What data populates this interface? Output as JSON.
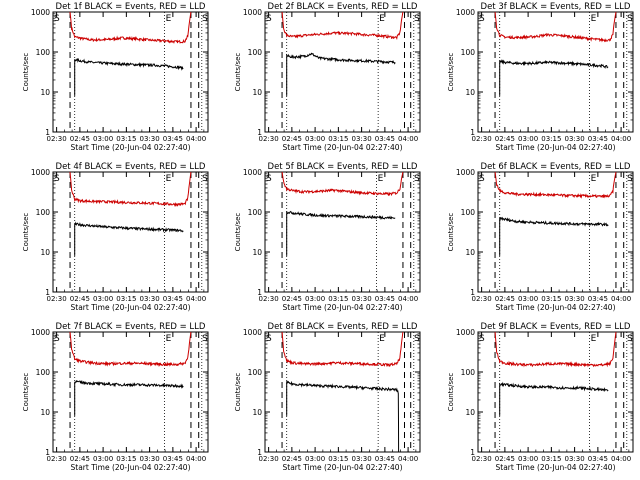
{
  "figure": {
    "start_time_label": "Start Time (20-Jun-04 02:27:40)",
    "ylabel": "Counts/sec",
    "x_ticks": [
      "02:30",
      "02:45",
      "03:00",
      "03:15",
      "03:30",
      "03:45",
      "04:00"
    ],
    "x_tick_minutes": [
      2.33,
      17.33,
      32.33,
      47.33,
      62.33,
      77.33,
      92.33
    ],
    "y_ticks": [
      "1",
      "10",
      "100",
      "1000"
    ],
    "y_tick_values": [
      1,
      10,
      100,
      1000
    ],
    "marker_s": "S",
    "marker_e": "E",
    "colors": {
      "events": "#000000",
      "lld": "#cc0000"
    }
  },
  "chart_data": [
    {
      "type": "line",
      "title": "Det 1f BLACK = Events, RED = LLD",
      "xlabel": "Start Time (20-Jun-04 02:27:40)",
      "ylabel": "Counts/sec",
      "xlim": [
        0,
        100
      ],
      "ylim": [
        1,
        1000
      ],
      "yscale": "log",
      "dashed_lines_min": [
        11,
        89,
        94
      ],
      "dotted_lines_min": [
        14,
        72,
        96
      ],
      "series": [
        {
          "name": "LLD",
          "color": "#cc0000",
          "x": [
            11,
            12,
            14,
            18,
            25,
            35,
            45,
            55,
            65,
            72,
            80,
            85,
            87,
            88,
            89
          ],
          "y": [
            1000,
            400,
            240,
            220,
            200,
            205,
            225,
            210,
            195,
            190,
            180,
            185,
            250,
            550,
            1000
          ]
        },
        {
          "name": "Events",
          "color": "#000000",
          "x": [
            14,
            18,
            25,
            35,
            45,
            55,
            65,
            72,
            80,
            84
          ],
          "y": [
            65,
            60,
            55,
            52,
            50,
            48,
            47,
            45,
            42,
            40
          ]
        }
      ]
    },
    {
      "type": "line",
      "title": "Det 2f BLACK = Events, RED = LLD",
      "xlabel": "Start Time (20-Jun-04 02:27:40)",
      "ylabel": "Counts/sec",
      "xlim": [
        0,
        100
      ],
      "ylim": [
        1,
        1000
      ],
      "yscale": "log",
      "dashed_lines_min": [
        11,
        90,
        94
      ],
      "dotted_lines_min": [
        14,
        73,
        96
      ],
      "series": [
        {
          "name": "LLD",
          "color": "#cc0000",
          "x": [
            11,
            12,
            14,
            18,
            25,
            35,
            45,
            55,
            65,
            73,
            80,
            85,
            87,
            88,
            89
          ],
          "y": [
            1000,
            380,
            260,
            240,
            260,
            280,
            300,
            290,
            270,
            260,
            240,
            230,
            300,
            600,
            1000
          ]
        },
        {
          "name": "Events",
          "color": "#000000",
          "x": [
            14,
            18,
            25,
            30,
            35,
            45,
            55,
            65,
            73,
            80,
            84
          ],
          "y": [
            80,
            75,
            78,
            90,
            70,
            65,
            62,
            60,
            58,
            56,
            55
          ]
        }
      ]
    },
    {
      "type": "line",
      "title": "Det 3f BLACK = Events, RED = LLD",
      "xlabel": "Start Time (20-Jun-04 02:27:40)",
      "ylabel": "Counts/sec",
      "xlim": [
        0,
        100
      ],
      "ylim": [
        1,
        1000
      ],
      "yscale": "log",
      "dashed_lines_min": [
        11,
        89,
        94
      ],
      "dotted_lines_min": [
        14,
        72,
        96
      ],
      "series": [
        {
          "name": "LLD",
          "color": "#cc0000",
          "x": [
            11,
            12,
            14,
            18,
            25,
            35,
            45,
            55,
            65,
            72,
            80,
            85,
            87,
            88,
            89
          ],
          "y": [
            1000,
            420,
            260,
            235,
            230,
            240,
            270,
            255,
            230,
            215,
            200,
            200,
            270,
            580,
            1000
          ]
        },
        {
          "name": "Events",
          "color": "#000000",
          "x": [
            14,
            18,
            25,
            35,
            45,
            55,
            65,
            72,
            80,
            84
          ],
          "y": [
            58,
            55,
            52,
            52,
            55,
            53,
            50,
            48,
            45,
            42
          ]
        }
      ]
    },
    {
      "type": "line",
      "title": "Det 4f BLACK = Events, RED = LLD",
      "xlabel": "Start Time (20-Jun-04 02:27:40)",
      "ylabel": "Counts/sec",
      "xlim": [
        0,
        100
      ],
      "ylim": [
        1,
        1000
      ],
      "yscale": "log",
      "dashed_lines_min": [
        11,
        89,
        94
      ],
      "dotted_lines_min": [
        14,
        72,
        96
      ],
      "series": [
        {
          "name": "LLD",
          "color": "#cc0000",
          "x": [
            11,
            12,
            14,
            18,
            25,
            35,
            45,
            55,
            65,
            72,
            80,
            85,
            87,
            88,
            89
          ],
          "y": [
            1000,
            350,
            210,
            190,
            185,
            180,
            175,
            170,
            165,
            160,
            155,
            160,
            220,
            500,
            1000
          ]
        },
        {
          "name": "Events",
          "color": "#000000",
          "x": [
            14,
            18,
            25,
            35,
            45,
            55,
            65,
            72,
            80,
            84
          ],
          "y": [
            50,
            48,
            45,
            42,
            40,
            38,
            37,
            36,
            35,
            34
          ]
        }
      ]
    },
    {
      "type": "line",
      "title": "Det 5f BLACK = Events, RED = LLD",
      "xlabel": "Start Time (20-Jun-04 02:27:40)",
      "ylabel": "Counts/sec",
      "xlim": [
        0,
        100
      ],
      "ylim": [
        1,
        1000
      ],
      "yscale": "log",
      "dashed_lines_min": [
        11,
        89,
        94
      ],
      "dotted_lines_min": [
        14,
        72,
        96
      ],
      "series": [
        {
          "name": "LLD",
          "color": "#cc0000",
          "x": [
            11,
            12,
            14,
            18,
            25,
            35,
            45,
            55,
            65,
            72,
            80,
            85,
            87,
            88,
            89
          ],
          "y": [
            1000,
            550,
            380,
            340,
            320,
            330,
            350,
            320,
            300,
            290,
            280,
            300,
            380,
            650,
            1000
          ]
        },
        {
          "name": "Events",
          "color": "#000000",
          "x": [
            14,
            18,
            25,
            35,
            45,
            55,
            65,
            72,
            80,
            84
          ],
          "y": [
            100,
            95,
            88,
            82,
            80,
            78,
            76,
            74,
            72,
            70
          ]
        }
      ]
    },
    {
      "type": "line",
      "title": "Det 6f BLACK = Events, RED = LLD",
      "xlabel": "Start Time (20-Jun-04 02:27:40)",
      "ylabel": "Counts/sec",
      "xlim": [
        0,
        100
      ],
      "ylim": [
        1,
        1000
      ],
      "yscale": "log",
      "dashed_lines_min": [
        11,
        89,
        94
      ],
      "dotted_lines_min": [
        14,
        72,
        96
      ],
      "series": [
        {
          "name": "LLD",
          "color": "#cc0000",
          "x": [
            11,
            12,
            14,
            18,
            25,
            35,
            45,
            55,
            65,
            72,
            80,
            85,
            87,
            88,
            89
          ],
          "y": [
            1000,
            500,
            340,
            300,
            280,
            275,
            270,
            260,
            255,
            250,
            245,
            250,
            330,
            620,
            1000
          ]
        },
        {
          "name": "Events",
          "color": "#000000",
          "x": [
            14,
            18,
            25,
            35,
            45,
            55,
            65,
            72,
            80,
            84
          ],
          "y": [
            70,
            65,
            58,
            55,
            53,
            52,
            50,
            50,
            49,
            48
          ]
        }
      ]
    },
    {
      "type": "line",
      "title": "Det 7f BLACK = Events, RED = LLD",
      "xlabel": "Start Time (20-Jun-04 02:27:40)",
      "ylabel": "Counts/sec",
      "xlim": [
        0,
        100
      ],
      "ylim": [
        1,
        1000
      ],
      "yscale": "log",
      "dashed_lines_min": [
        11,
        89,
        94
      ],
      "dotted_lines_min": [
        14,
        72,
        96
      ],
      "series": [
        {
          "name": "LLD",
          "color": "#cc0000",
          "x": [
            11,
            12,
            14,
            18,
            25,
            35,
            45,
            55,
            65,
            72,
            80,
            85,
            87,
            88,
            89
          ],
          "y": [
            1000,
            380,
            210,
            185,
            170,
            160,
            165,
            165,
            160,
            155,
            155,
            165,
            230,
            520,
            1000
          ]
        },
        {
          "name": "Events",
          "color": "#000000",
          "x": [
            14,
            18,
            25,
            35,
            45,
            55,
            65,
            72,
            80,
            84
          ],
          "y": [
            58,
            55,
            52,
            50,
            48,
            48,
            47,
            46,
            45,
            45
          ]
        }
      ]
    },
    {
      "type": "line",
      "title": "Det 8f BLACK = Events, RED = LLD",
      "xlabel": "Start Time (20-Jun-04 02:27:40)",
      "ylabel": "Counts/sec",
      "xlim": [
        0,
        100
      ],
      "ylim": [
        1,
        1000
      ],
      "yscale": "log",
      "dashed_lines_min": [
        11,
        90,
        94
      ],
      "dotted_lines_min": [
        14,
        73,
        96
      ],
      "series": [
        {
          "name": "LLD",
          "color": "#cc0000",
          "x": [
            11,
            12,
            14,
            18,
            25,
            35,
            45,
            55,
            65,
            73,
            80,
            85,
            87,
            88,
            89
          ],
          "y": [
            1000,
            350,
            190,
            170,
            160,
            160,
            170,
            165,
            160,
            155,
            150,
            160,
            220,
            500,
            1000
          ]
        },
        {
          "name": "Events",
          "color": "#000000",
          "x": [
            14,
            18,
            25,
            35,
            45,
            55,
            65,
            73,
            80,
            85,
            86,
            86.2
          ],
          "y": [
            55,
            50,
            48,
            45,
            44,
            42,
            40,
            38,
            37,
            36,
            30,
            1
          ]
        }
      ]
    },
    {
      "type": "line",
      "title": "Det 9f BLACK = Events, RED = LLD",
      "xlabel": "Start Time (20-Jun-04 02:27:40)",
      "ylabel": "Counts/sec",
      "xlim": [
        0,
        100
      ],
      "ylim": [
        1,
        1000
      ],
      "yscale": "log",
      "dashed_lines_min": [
        11,
        89,
        94
      ],
      "dotted_lines_min": [
        14,
        72,
        96
      ],
      "series": [
        {
          "name": "LLD",
          "color": "#cc0000",
          "x": [
            11,
            12,
            14,
            18,
            25,
            35,
            45,
            55,
            65,
            72,
            80,
            85,
            87,
            88,
            89
          ],
          "y": [
            1000,
            330,
            185,
            165,
            155,
            150,
            160,
            160,
            155,
            150,
            150,
            160,
            215,
            480,
            1000
          ]
        },
        {
          "name": "Events",
          "color": "#000000",
          "x": [
            14,
            18,
            25,
            35,
            45,
            55,
            65,
            72,
            80,
            84
          ],
          "y": [
            50,
            48,
            45,
            42,
            42,
            40,
            40,
            38,
            36,
            35
          ]
        }
      ]
    }
  ]
}
